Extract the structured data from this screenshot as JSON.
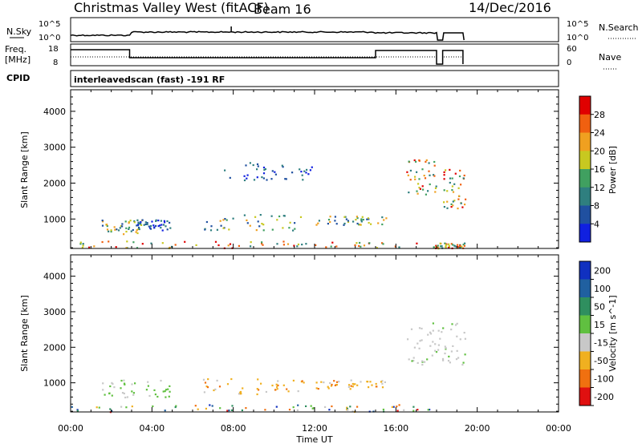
{
  "header": {
    "station": "Christmas Valley West (fitACF)",
    "beam": "Beam 16",
    "date": "14/Dec/2016"
  },
  "nsky_panel": {
    "left_label": "N.Sky",
    "right_label": "N.Search",
    "left_ticks": [
      "10^5",
      "10^0"
    ],
    "right_ticks": [
      "10^5",
      "10^0"
    ]
  },
  "freq_panel": {
    "left_label_1": "Freq.",
    "left_label_2": "[MHz]",
    "left_ticks": [
      "18",
      "8"
    ],
    "right_ticks": [
      "60",
      "0"
    ],
    "right_label": "Nave"
  },
  "cpid": {
    "label": "CPID",
    "value": "interleavedscan (fast) -191 RF"
  },
  "chart_data": [
    {
      "type": "heatmap",
      "name": "power",
      "xlabel": "Time UT",
      "ylabel": "Slant Range [km]",
      "x_tick_labels": [
        "00:00",
        "04:00",
        "08:00",
        "12:00",
        "16:00",
        "20:00",
        "00:00"
      ],
      "xlim_hours": [
        0,
        24
      ],
      "y_ticks": [
        1000,
        2000,
        3000,
        4000
      ],
      "ylim_km": [
        180,
        4600
      ],
      "colorbar_label": "Power [dB]",
      "colorbar_ticks": [
        4,
        8,
        12,
        16,
        20,
        24,
        28
      ],
      "colorbar_range": [
        0,
        32
      ],
      "colorbar_colors": [
        "#1020e0",
        "#2050a0",
        "#2f7f7f",
        "#40a060",
        "#c8c820",
        "#f0a020",
        "#f06010",
        "#e00000"
      ],
      "scatter_regions": [
        {
          "t": [
            0.0,
            17.8
          ],
          "r": [
            200,
            400
          ],
          "level": "high"
        },
        {
          "t": [
            17.8,
            19.4
          ],
          "r": [
            200,
            350
          ],
          "level": "high"
        },
        {
          "t": [
            1.5,
            3.5
          ],
          "r": [
            600,
            1000
          ],
          "level": "mid"
        },
        {
          "t": [
            3.2,
            5.0
          ],
          "r": [
            700,
            1000
          ],
          "level": "low"
        },
        {
          "t": [
            6.5,
            11.5
          ],
          "r": [
            700,
            1150
          ],
          "level": "mid"
        },
        {
          "t": [
            12.0,
            15.5
          ],
          "r": [
            850,
            1100
          ],
          "level": "mid"
        },
        {
          "t": [
            7.5,
            12.0
          ],
          "r": [
            2100,
            2600
          ],
          "level": "low"
        },
        {
          "t": [
            16.5,
            18.0
          ],
          "r": [
            1700,
            2700
          ],
          "level": "high"
        },
        {
          "t": [
            18.3,
            19.4
          ],
          "r": [
            1300,
            2400
          ],
          "level": "high"
        }
      ]
    },
    {
      "type": "heatmap",
      "name": "velocity",
      "xlabel": "Time UT",
      "ylabel": "Slant Range [km]",
      "x_tick_labels": [
        "00:00",
        "04:00",
        "08:00",
        "12:00",
        "16:00",
        "20:00",
        "00:00"
      ],
      "xlim_hours": [
        0,
        24
      ],
      "y_ticks": [
        1000,
        2000,
        3000,
        4000
      ],
      "ylim_km": [
        180,
        4600
      ],
      "colorbar_label": "Velocity [m s^-1]",
      "colorbar_ticks": [
        "200",
        "100",
        "50",
        "15",
        "-15",
        "-50",
        "-100",
        "-200"
      ],
      "colorbar_colors": [
        "#1030c0",
        "#2060a0",
        "#2f8f5f",
        "#60c040",
        "#c8c8c8",
        "#f0b020",
        "#f07010",
        "#e01010"
      ],
      "scatter_regions": [
        {
          "t": [
            0.0,
            17.8
          ],
          "r": [
            200,
            400
          ],
          "level": "mixed"
        },
        {
          "t": [
            1.5,
            5.0
          ],
          "r": [
            600,
            1100
          ],
          "level": "green"
        },
        {
          "t": [
            6.5,
            11.5
          ],
          "r": [
            700,
            1150
          ],
          "level": "orange"
        },
        {
          "t": [
            12.0,
            15.5
          ],
          "r": [
            850,
            1100
          ],
          "level": "orange"
        },
        {
          "t": [
            16.5,
            19.4
          ],
          "r": [
            1500,
            2700
          ],
          "level": "grey"
        }
      ]
    }
  ],
  "ts_params": {
    "n_search_line": "...",
    "nave_line": "..."
  }
}
